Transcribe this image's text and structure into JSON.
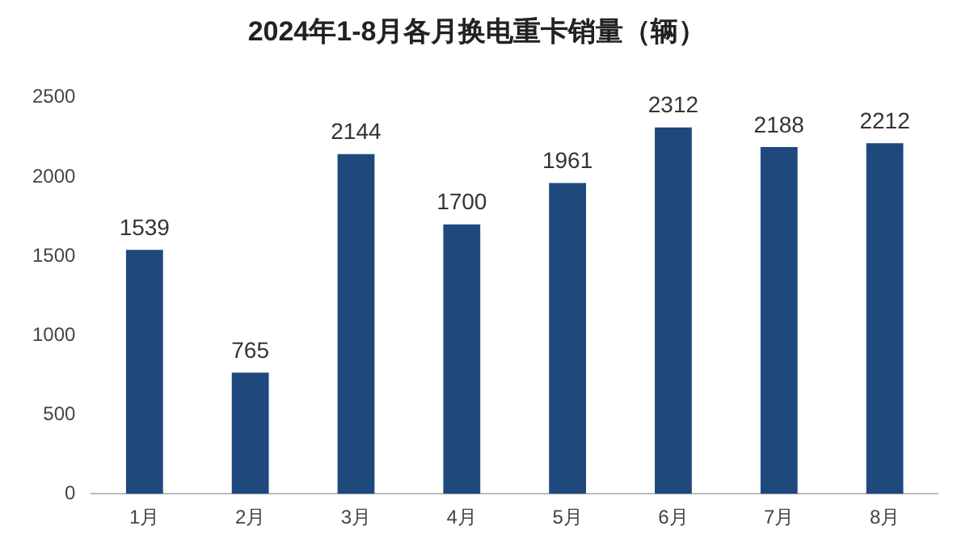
{
  "chart_data": {
    "type": "bar",
    "title": "2024年1-8月各月换电重卡销量（辆）",
    "categories": [
      "1月",
      "2月",
      "3月",
      "4月",
      "5月",
      "6月",
      "7月",
      "8月"
    ],
    "values": [
      1539,
      765,
      2144,
      1700,
      1961,
      2312,
      2188,
      2212
    ],
    "color": "#1f497d",
    "ylim": [
      0,
      2500
    ],
    "yticks": [
      0,
      500,
      1000,
      1500,
      2000,
      2500
    ],
    "grid": false,
    "data_labels": true,
    "legend": false
  }
}
